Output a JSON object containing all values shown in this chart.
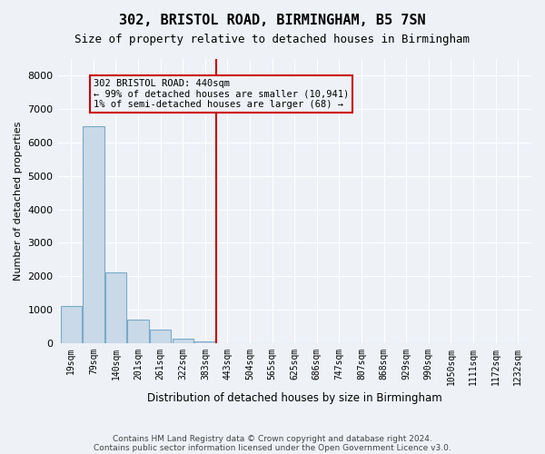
{
  "title": "302, BRISTOL ROAD, BIRMINGHAM, B5 7SN",
  "subtitle": "Size of property relative to detached houses in Birmingham",
  "xlabel": "Distribution of detached houses by size in Birmingham",
  "ylabel": "Number of detached properties",
  "footer_line1": "Contains HM Land Registry data © Crown copyright and database right 2024.",
  "footer_line2": "Contains public sector information licensed under the Open Government Licence v3.0.",
  "bin_labels": [
    "19sqm",
    "79sqm",
    "140sqm",
    "201sqm",
    "261sqm",
    "322sqm",
    "383sqm",
    "443sqm",
    "504sqm",
    "565sqm",
    "625sqm",
    "686sqm",
    "747sqm",
    "807sqm",
    "868sqm",
    "929sqm",
    "990sqm",
    "1050sqm",
    "1111sqm",
    "1172sqm",
    "1232sqm"
  ],
  "bar_heights": [
    1100,
    6500,
    2100,
    700,
    400,
    120,
    50,
    0,
    0,
    0,
    0,
    0,
    0,
    0,
    0,
    0,
    0,
    0,
    0,
    0,
    0
  ],
  "bar_color": "#c9d9e8",
  "bar_edge_color": "#7aaac8",
  "property_line_x": 6.5,
  "annotation_line1": "302 BRISTOL ROAD: 440sqm",
  "annotation_line2": "← 99% of detached houses are smaller (10,941)",
  "annotation_line3": "1% of semi-detached houses are larger (68) →",
  "annotation_box_color": "#cc0000",
  "ylim": [
    0,
    8500
  ],
  "yticks": [
    0,
    1000,
    2000,
    3000,
    4000,
    5000,
    6000,
    7000,
    8000
  ],
  "background_color": "#eef2f7",
  "grid_color": "#ffffff"
}
